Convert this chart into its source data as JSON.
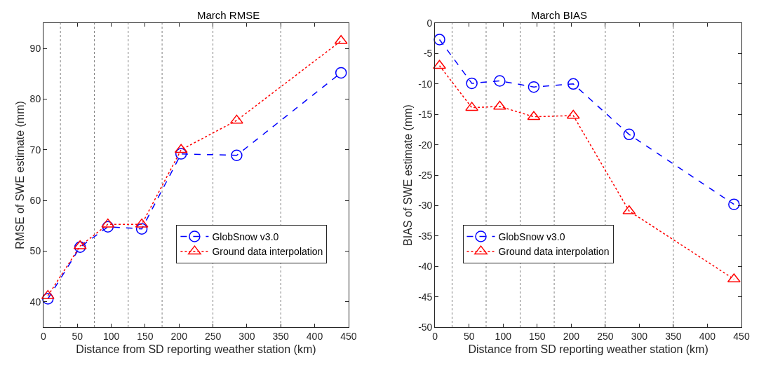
{
  "chart_data": [
    {
      "type": "line",
      "title": "March RMSE",
      "xlabel": "Distance from SD reporting weather station (km)",
      "ylabel": "RMSE of SWE estimate (mm)",
      "x": [
        6.5,
        54,
        95,
        145,
        203,
        285,
        439
      ],
      "series": [
        {
          "name": "GlobSnow v3.0",
          "color": "#0000ff",
          "marker": "circle",
          "line_style": "dashed",
          "values": [
            40.6,
            50.8,
            54.8,
            54.4,
            69.2,
            68.9,
            85.2
          ]
        },
        {
          "name": "Ground data interpolation",
          "color": "#ff0000",
          "marker": "triangle",
          "line_style": "dotted",
          "values": [
            41.2,
            51.0,
            55.3,
            55.3,
            70.0,
            75.8,
            91.5
          ]
        }
      ],
      "xlim": [
        0,
        450
      ],
      "xticks": [
        0,
        50,
        100,
        150,
        200,
        250,
        300,
        350,
        400,
        450
      ],
      "ylim": [
        35,
        95
      ],
      "yticks": [
        40,
        50,
        60,
        70,
        80,
        90
      ],
      "ref_lines": [
        {
          "axis": "x",
          "value": 25,
          "color": "#808080",
          "line_style": "dotted"
        },
        {
          "axis": "x",
          "value": 75,
          "color": "#808080",
          "line_style": "dotted"
        },
        {
          "axis": "x",
          "value": 125,
          "color": "#808080",
          "line_style": "dotted"
        },
        {
          "axis": "x",
          "value": 175,
          "color": "#808080",
          "line_style": "dotted"
        },
        {
          "axis": "x",
          "value": 250,
          "color": "#808080",
          "line_style": "dotted"
        },
        {
          "axis": "x",
          "value": 350,
          "color": "#808080",
          "line_style": "dotted"
        }
      ],
      "legend": "bottom right",
      "grid": false
    },
    {
      "type": "line",
      "title": "March BIAS",
      "xlabel": "Distance from SD reporting weather station (km)",
      "ylabel": "BIAS of SWE estimate (mm)",
      "x": [
        6.5,
        54,
        95,
        145,
        203,
        285,
        439
      ],
      "series": [
        {
          "name": "GlobSnow v3.0",
          "color": "#0000ff",
          "marker": "circle",
          "line_style": "dashed",
          "values": [
            -2.7,
            -9.9,
            -9.5,
            -10.5,
            -10.0,
            -18.3,
            -29.8
          ]
        },
        {
          "name": "Ground data interpolation",
          "color": "#ff0000",
          "marker": "triangle",
          "line_style": "dotted",
          "values": [
            -7.0,
            -13.9,
            -13.7,
            -15.4,
            -15.2,
            -30.9,
            -42.1
          ]
        }
      ],
      "xlim": [
        0,
        450
      ],
      "xticks": [
        0,
        50,
        100,
        150,
        200,
        250,
        300,
        350,
        400,
        450
      ],
      "ylim": [
        -50,
        0
      ],
      "yticks": [
        -50,
        -45,
        -40,
        -35,
        -30,
        -25,
        -20,
        -15,
        -10,
        -5,
        0
      ],
      "ref_lines": [
        {
          "axis": "x",
          "value": 25,
          "color": "#808080",
          "line_style": "dotted"
        },
        {
          "axis": "x",
          "value": 75,
          "color": "#808080",
          "line_style": "dotted"
        },
        {
          "axis": "x",
          "value": 125,
          "color": "#808080",
          "line_style": "dotted"
        },
        {
          "axis": "x",
          "value": 175,
          "color": "#808080",
          "line_style": "dotted"
        },
        {
          "axis": "x",
          "value": 250,
          "color": "#808080",
          "line_style": "dotted"
        },
        {
          "axis": "x",
          "value": 350,
          "color": "#808080",
          "line_style": "dotted"
        }
      ],
      "legend": "bottom left",
      "grid": false
    }
  ]
}
